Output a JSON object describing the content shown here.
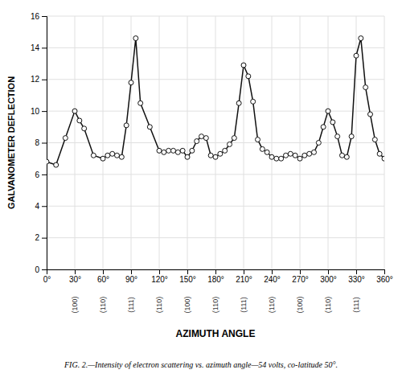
{
  "chart_data": {
    "type": "line",
    "x": [
      0,
      10,
      20,
      30,
      35,
      40,
      50,
      60,
      65,
      70,
      75,
      80,
      85,
      90,
      95,
      100,
      110,
      120,
      125,
      130,
      135,
      140,
      145,
      150,
      155,
      160,
      165,
      170,
      175,
      180,
      185,
      190,
      195,
      200,
      205,
      210,
      215,
      220,
      225,
      230,
      235,
      240,
      245,
      250,
      255,
      260,
      265,
      270,
      275,
      280,
      285,
      290,
      295,
      300,
      305,
      310,
      315,
      320,
      325,
      330,
      335,
      340,
      345,
      350,
      355,
      360
    ],
    "values": [
      6.8,
      6.6,
      8.3,
      10.0,
      9.4,
      8.9,
      7.2,
      7.0,
      7.2,
      7.3,
      7.2,
      7.1,
      9.1,
      11.8,
      14.6,
      10.5,
      9.0,
      7.5,
      7.4,
      7.5,
      7.5,
      7.4,
      7.5,
      7.1,
      7.5,
      8.1,
      8.4,
      8.3,
      7.2,
      7.1,
      7.3,
      7.5,
      7.9,
      8.3,
      10.5,
      12.9,
      12.2,
      10.6,
      8.2,
      7.6,
      7.4,
      7.1,
      7.0,
      7.0,
      7.2,
      7.3,
      7.2,
      7.0,
      7.2,
      7.3,
      7.4,
      8.0,
      9.0,
      10.0,
      9.3,
      8.4,
      7.2,
      7.1,
      8.4,
      13.5,
      14.6,
      11.5,
      9.8,
      8.2,
      7.3,
      7.0
    ],
    "xlim": [
      0,
      360
    ],
    "ylim": [
      0,
      16
    ],
    "xticks": [
      {
        "value": 0,
        "label": "0°"
      },
      {
        "value": 30,
        "label": "30°"
      },
      {
        "value": 60,
        "label": "60°"
      },
      {
        "value": 90,
        "label": "90°"
      },
      {
        "value": 120,
        "label": "120°"
      },
      {
        "value": 150,
        "label": "150°"
      },
      {
        "value": 180,
        "label": "180°"
      },
      {
        "value": 210,
        "label": "210°"
      },
      {
        "value": 240,
        "label": "240°"
      },
      {
        "value": 270,
        "label": "270°"
      },
      {
        "value": 300,
        "label": "300°"
      },
      {
        "value": 330,
        "label": "330°"
      },
      {
        "value": 360,
        "label": "360°"
      }
    ],
    "yticks": [
      0,
      2,
      4,
      6,
      8,
      10,
      12,
      14,
      16
    ],
    "xlabel": "AZIMUTH ANGLE",
    "ylabel": "GALVANOMETER DEFLECTION",
    "caption": "FIG. 2.—Intensity of electron scattering vs. azimuth angle—54 volts, co-latitude 50°.",
    "annotations": [
      {
        "x": 30,
        "text": "(100)"
      },
      {
        "x": 60,
        "text": "(110)"
      },
      {
        "x": 90,
        "text": "(111)"
      },
      {
        "x": 120,
        "text": "(110)"
      },
      {
        "x": 150,
        "text": "(100)"
      },
      {
        "x": 180,
        "text": "(110)"
      },
      {
        "x": 210,
        "text": "(111)"
      },
      {
        "x": 240,
        "text": "(110)"
      },
      {
        "x": 270,
        "text": "(100)"
      },
      {
        "x": 300,
        "text": "(110)"
      },
      {
        "x": 330,
        "text": "(111)"
      }
    ],
    "color": "#111111",
    "marker": "circle",
    "grid": true
  }
}
